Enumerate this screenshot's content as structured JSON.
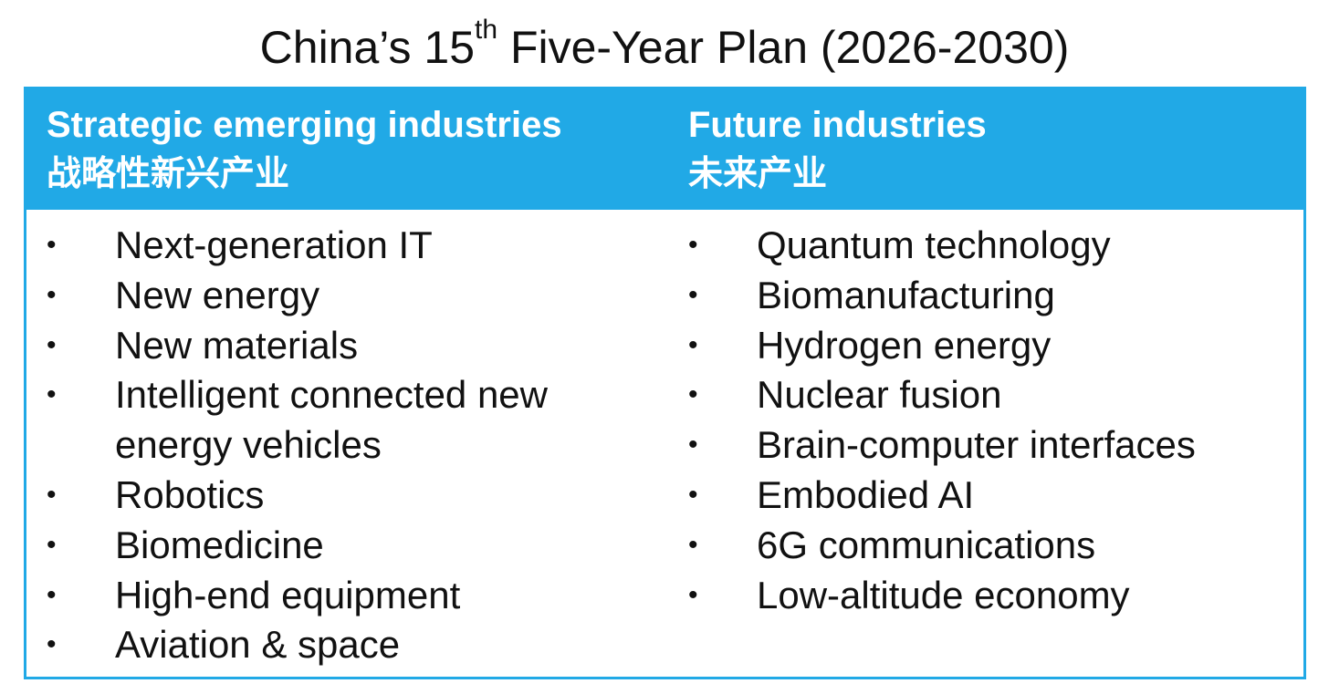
{
  "title": {
    "prefix": "China’s 15",
    "superscript": "th",
    "suffix": " Five-Year Plan (2026-2030)"
  },
  "colors": {
    "header_background": "#21a9e6",
    "header_text": "#ffffff",
    "border": "#21a9e6"
  },
  "columns": [
    {
      "heading_en": "Strategic emerging industries",
      "heading_zh": "战略性新兴产业",
      "items": [
        "Next-generation IT",
        "New energy",
        "New materials",
        "Intelligent connected new energy vehicles",
        "Robotics",
        "Biomedicine",
        "High-end equipment",
        "Aviation & space"
      ]
    },
    {
      "heading_en": "Future industries",
      "heading_zh": "未来产业",
      "items": [
        "Quantum technology",
        "Biomanufacturing",
        "Hydrogen energy",
        "Nuclear fusion",
        "Brain-computer interfaces",
        "Embodied AI",
        "6G communications",
        "Low-altitude economy"
      ]
    }
  ],
  "bullet_symbol": "•"
}
